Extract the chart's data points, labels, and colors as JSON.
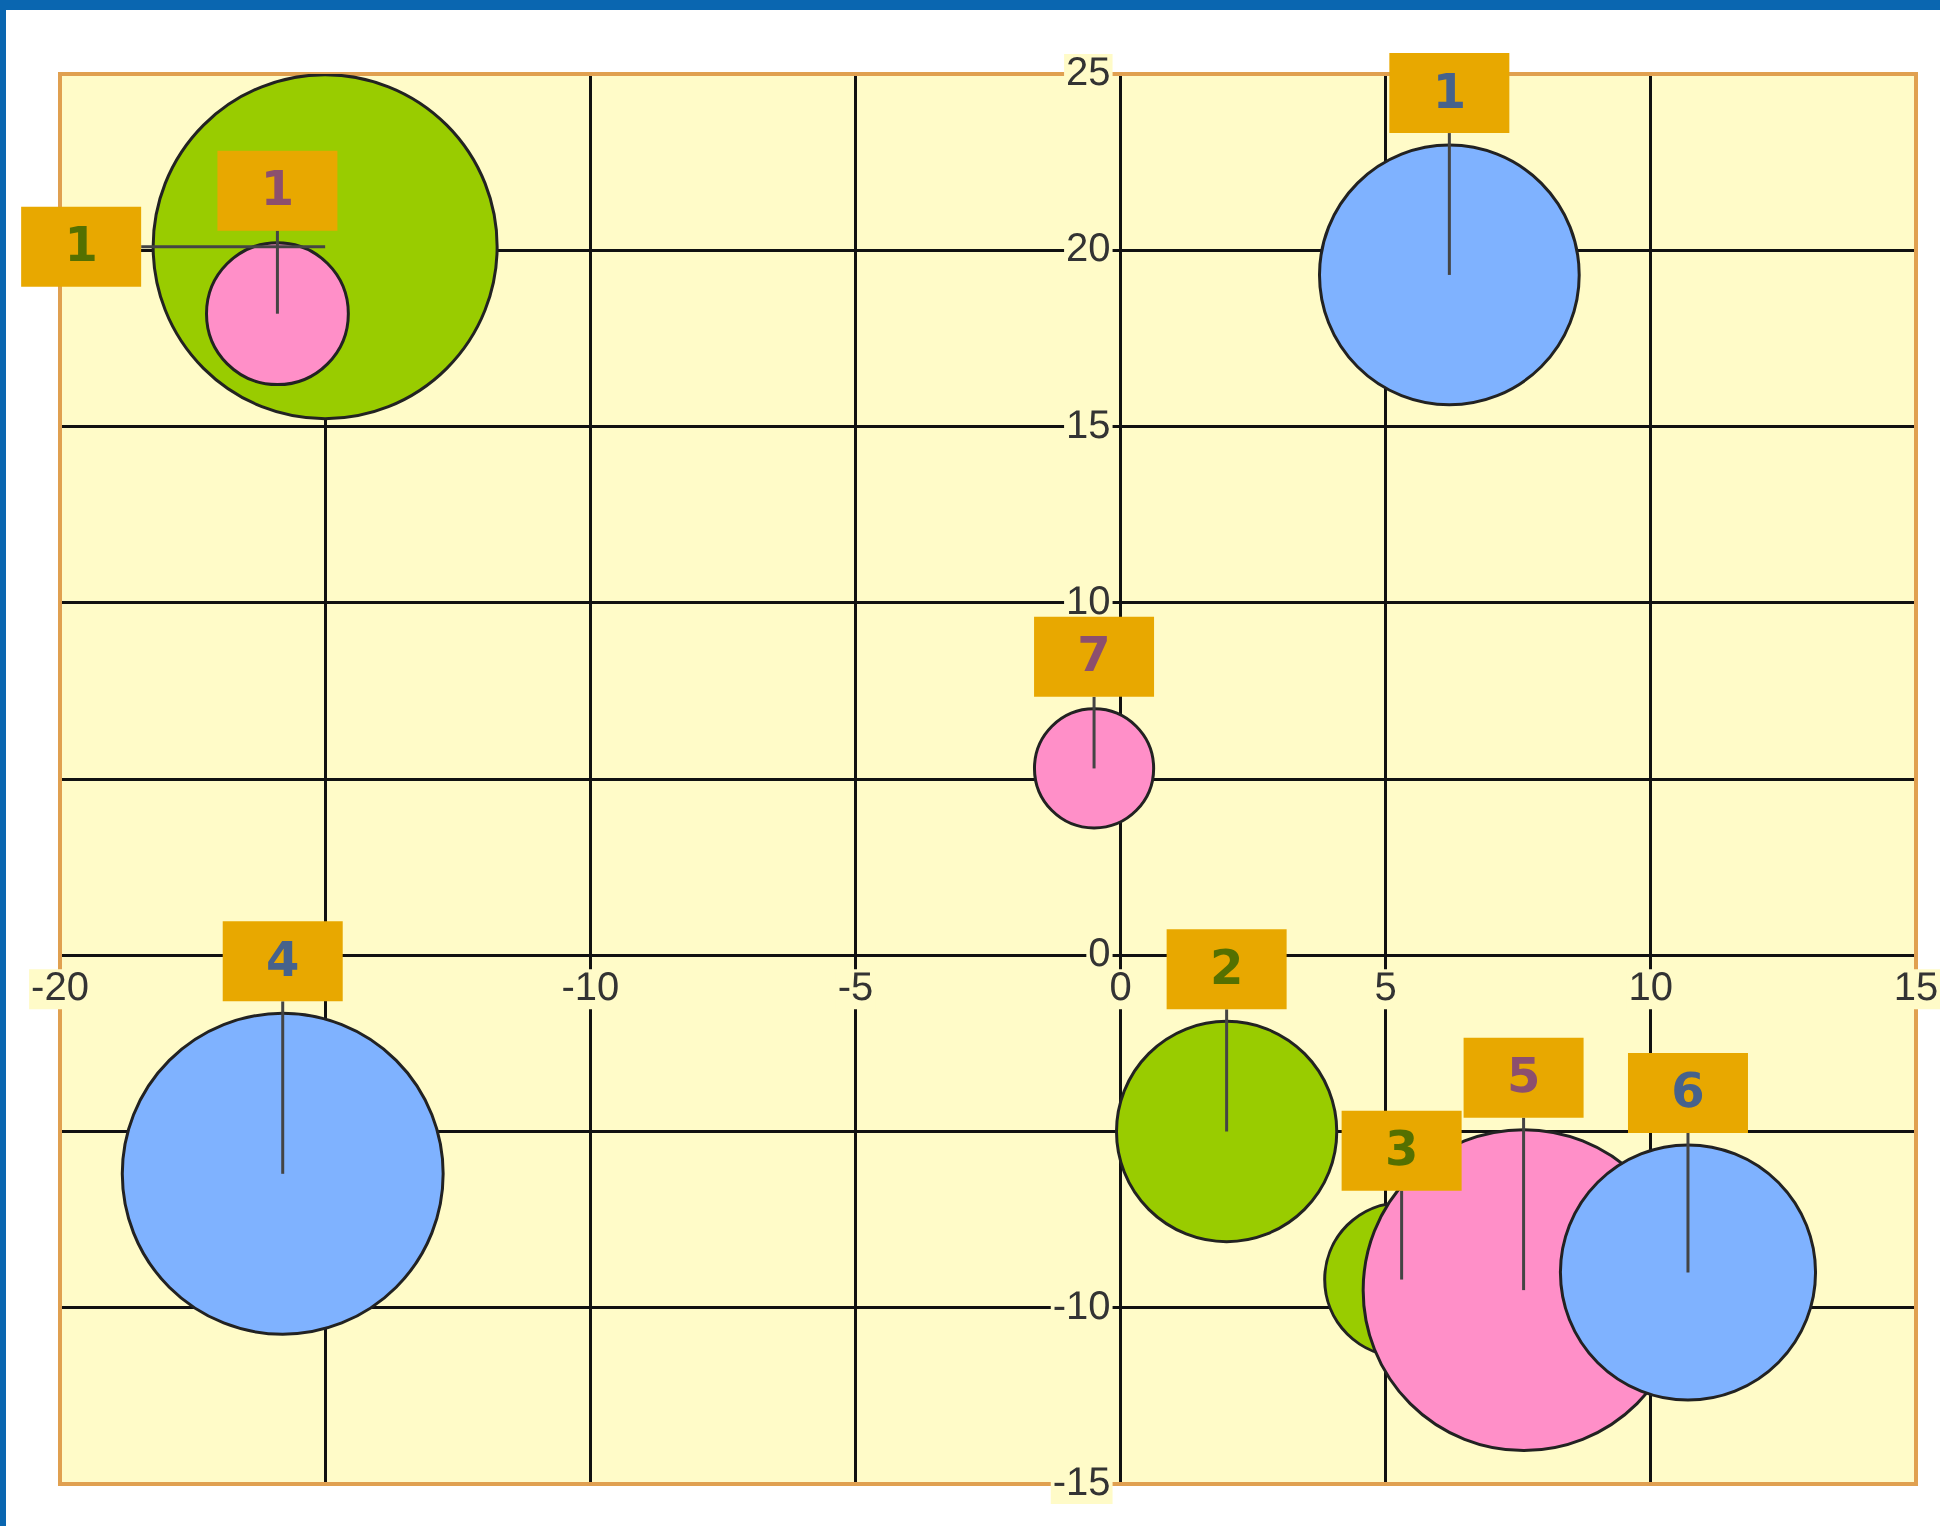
{
  "chart_data": {
    "type": "bubble",
    "series": [
      {
        "color": "#99cc00",
        "x": [
          -15.0,
          2.0,
          5.3
        ],
        "values": [
          20.1,
          -5.0,
          -9.2
        ],
        "sizes": [
          1,
          0.41,
          0.2
        ]
      },
      {
        "color": "#ff8fc8",
        "x": [
          -15.9,
          -0.5,
          7.6
        ],
        "values": [
          18.2,
          5.3,
          -9.5
        ],
        "sizes": [
          0.17,
          0.12,
          0.87
        ]
      },
      {
        "color": "#7fb2ff",
        "x": [
          6.2,
          -15.8,
          10.7
        ],
        "values": [
          19.3,
          -6.2,
          -9.0
        ],
        "sizes": [
          0.57,
          0.87,
          0.55
        ]
      }
    ],
    "annotations": [
      {
        "text": "1",
        "x": -15.9,
        "y": 18.2
      },
      {
        "text": "1",
        "x": -15.0,
        "y": 20.1
      },
      {
        "text": "2",
        "x": 2.0,
        "y": -5.0
      },
      {
        "text": "3",
        "x": 5.3,
        "y": -9.2
      },
      {
        "text": "7",
        "x": -0.5,
        "y": 5.3
      },
      {
        "text": "5",
        "x": 7.6,
        "y": -9.5
      },
      {
        "text": "1",
        "x": 6.2,
        "y": 19.3
      },
      {
        "text": "4",
        "x": -15.8,
        "y": -6.2
      },
      {
        "text": "6",
        "x": 10.7,
        "y": -9.0
      }
    ],
    "xlim": [
      -20,
      15
    ],
    "xticks": [
      -20,
      {
        "value": -15,
        "label": null
      },
      -10,
      -5,
      0,
      5,
      10,
      15
    ],
    "ylim": [
      -15,
      25
    ],
    "yticks": [
      -15,
      -10,
      {
        "value": -5,
        "label": null
      },
      0,
      {
        "value": 5,
        "label": null
      },
      10,
      15,
      20,
      25
    ],
    "grid": true,
    "legend": false
  }
}
